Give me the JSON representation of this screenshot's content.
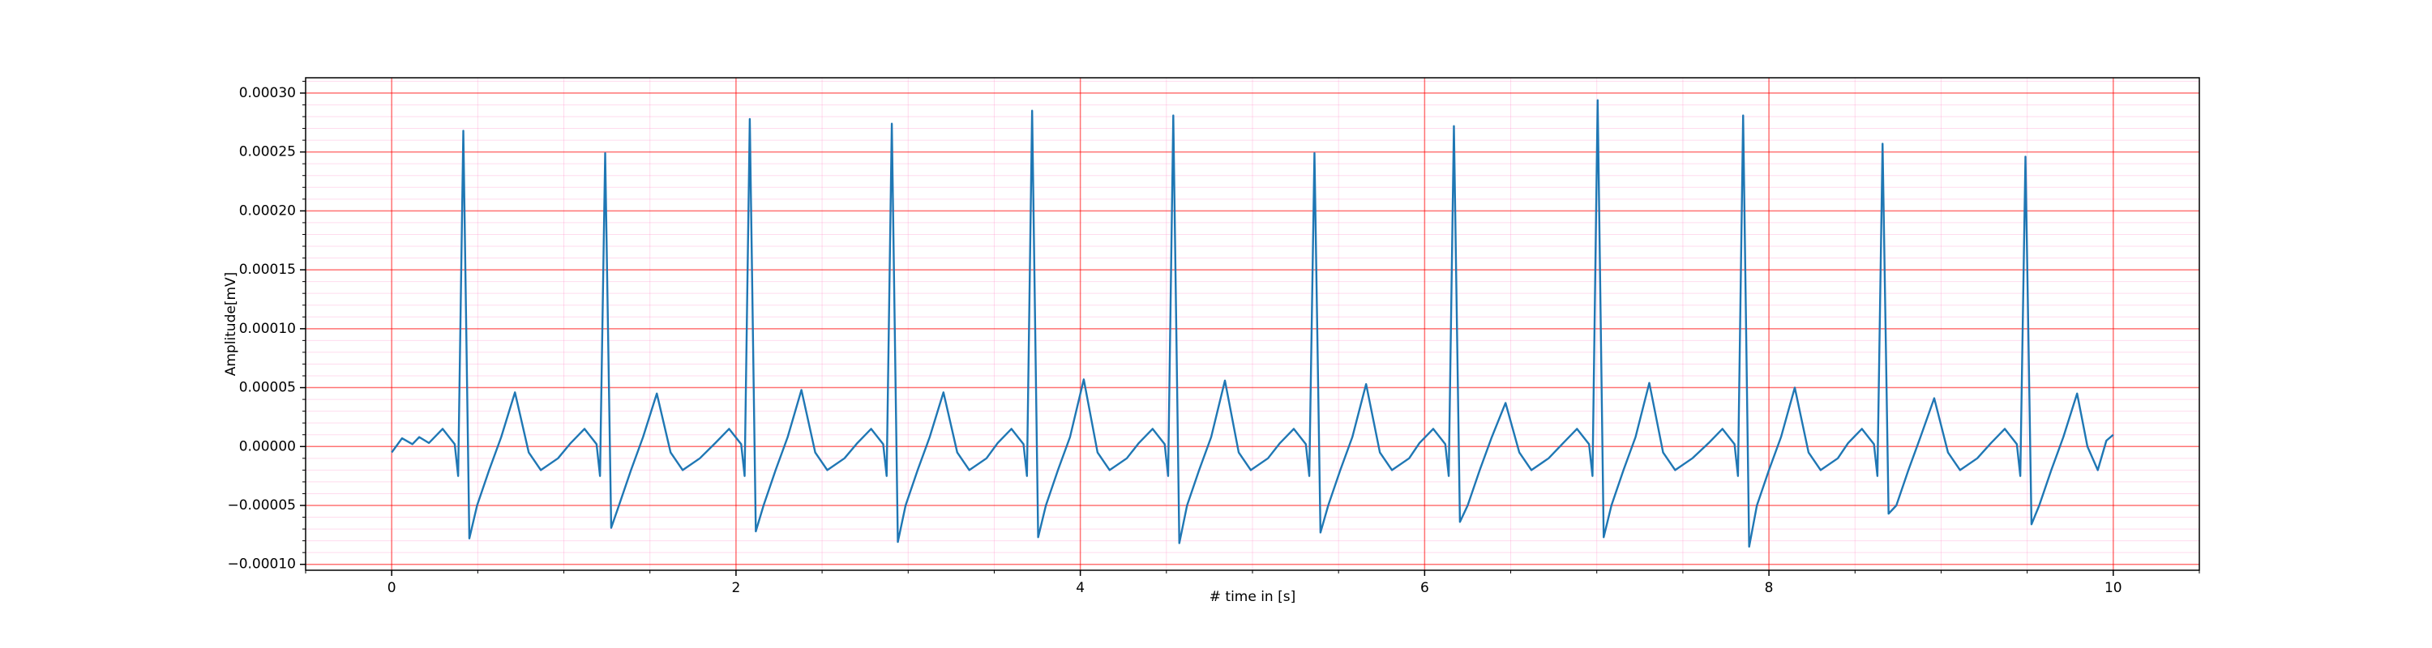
{
  "chart_data": {
    "type": "line",
    "xlabel": "# time in [s]",
    "ylabel": "Amplitude[mV]",
    "xlim": [
      -0.5,
      10.5
    ],
    "ylim": [
      -0.000105,
      0.000313
    ],
    "xticks": [
      0,
      2,
      4,
      6,
      8,
      10
    ],
    "yticks": [
      {
        "value": -0.0001,
        "label": "−0.00010"
      },
      {
        "value": -5e-05,
        "label": "−0.00005"
      },
      {
        "value": 0,
        "label": "0.00000"
      },
      {
        "value": 5e-05,
        "label": "0.00005"
      },
      {
        "value": 0.0001,
        "label": "0.00010"
      },
      {
        "value": 0.00015,
        "label": "0.00015"
      },
      {
        "value": 0.0002,
        "label": "0.00020"
      },
      {
        "value": 0.00025,
        "label": "0.00025"
      },
      {
        "value": 0.0003,
        "label": "0.00030"
      }
    ],
    "xminor_ticks": [
      -0.5,
      0.5,
      1,
      1.5,
      2.5,
      3,
      3.5,
      4.5,
      5,
      5.5,
      6.5,
      7,
      7.5,
      8.5,
      9,
      9.5,
      10.5
    ],
    "yminor_ticks": [
      -9e-05,
      -8e-05,
      -7e-05,
      -6e-05,
      -4e-05,
      -3e-05,
      -2e-05,
      -1e-05,
      1e-05,
      2e-05,
      3e-05,
      4e-05,
      6e-05,
      7e-05,
      8e-05,
      9e-05,
      0.00011,
      0.00012,
      0.00013,
      0.00014,
      0.00016,
      0.00017,
      0.00018,
      0.00019,
      0.00021,
      0.00022,
      0.00023,
      0.00024,
      0.00026,
      0.00027,
      0.00028,
      0.00029,
      0.00031
    ],
    "grid": true,
    "major_grid_color": "#ff0000",
    "minor_grid_color": "#ff99cc",
    "x": [
      0,
      0.06,
      0.12,
      0.16,
      0.216,
      0.296,
      0.366,
      0.386,
      0.416,
      0.451,
      0.496,
      0.566,
      0.636,
      0.716,
      0.796,
      0.866,
      0.966,
      1.04,
      1.12,
      1.19,
      1.21,
      1.24,
      1.275,
      1.32,
      1.39,
      1.46,
      1.54,
      1.62,
      1.69,
      1.79,
      1.88,
      1.96,
      2.03,
      2.05,
      2.08,
      2.115,
      2.16,
      2.23,
      2.3,
      2.38,
      2.46,
      2.53,
      2.63,
      2.705,
      2.785,
      2.855,
      2.875,
      2.905,
      2.94,
      2.985,
      3.055,
      3.125,
      3.205,
      3.285,
      3.355,
      3.455,
      3.52,
      3.6,
      3.67,
      3.69,
      3.72,
      3.755,
      3.8,
      3.87,
      3.94,
      4.02,
      4.1,
      4.17,
      4.27,
      4.34,
      4.42,
      4.49,
      4.51,
      4.54,
      4.575,
      4.62,
      4.69,
      4.76,
      4.84,
      4.92,
      4.99,
      5.09,
      5.16,
      5.24,
      5.31,
      5.33,
      5.36,
      5.395,
      5.44,
      5.51,
      5.58,
      5.66,
      5.74,
      5.81,
      5.91,
      5.97,
      6.05,
      6.12,
      6.14,
      6.17,
      6.205,
      6.25,
      6.32,
      6.39,
      6.47,
      6.55,
      6.62,
      6.72,
      6.805,
      6.885,
      6.955,
      6.975,
      7.005,
      7.04,
      7.085,
      7.155,
      7.225,
      7.305,
      7.385,
      7.455,
      7.555,
      7.65,
      7.73,
      7.8,
      7.82,
      7.85,
      7.885,
      7.93,
      8.0,
      8.07,
      8.15,
      8.23,
      8.3,
      8.4,
      8.46,
      8.54,
      8.61,
      8.63,
      8.66,
      8.695,
      8.74,
      8.81,
      8.88,
      8.96,
      9.04,
      9.11,
      9.21,
      9.29,
      9.37,
      9.44,
      9.46,
      9.49,
      9.525,
      9.57,
      9.64,
      9.71,
      9.79,
      9.85,
      9.91,
      9.96,
      10.0
    ],
    "series": [
      {
        "color": "#1f77b4",
        "values": [
          -5e-06,
          7e-06,
          2e-06,
          8e-06,
          3e-06,
          1.5e-05,
          2e-06,
          -2.5e-05,
          0.000268,
          -7.8e-05,
          -5e-05,
          -2e-05,
          8e-06,
          4.6e-05,
          -5e-06,
          -2e-05,
          -1e-05,
          3e-06,
          1.5e-05,
          2e-06,
          -2.5e-05,
          0.000249,
          -6.9e-05,
          -5e-05,
          -2e-05,
          8e-06,
          4.5e-05,
          -5e-06,
          -2e-05,
          -1e-05,
          3e-06,
          1.5e-05,
          2e-06,
          -2.5e-05,
          0.000278,
          -7.2e-05,
          -5e-05,
          -2e-05,
          8e-06,
          4.8e-05,
          -5e-06,
          -2e-05,
          -1e-05,
          3e-06,
          1.5e-05,
          2e-06,
          -2.5e-05,
          0.000274,
          -8.1e-05,
          -5e-05,
          -2e-05,
          8e-06,
          4.6e-05,
          -5e-06,
          -2e-05,
          -1e-05,
          3e-06,
          1.5e-05,
          2e-06,
          -2.5e-05,
          0.000285,
          -7.7e-05,
          -5e-05,
          -2e-05,
          8e-06,
          5.7e-05,
          -5e-06,
          -2e-05,
          -1e-05,
          3e-06,
          1.5e-05,
          2e-06,
          -2.5e-05,
          0.000281,
          -8.2e-05,
          -5e-05,
          -2e-05,
          8e-06,
          5.6e-05,
          -5e-06,
          -2e-05,
          -1e-05,
          3e-06,
          1.5e-05,
          2e-06,
          -2.5e-05,
          0.000249,
          -7.3e-05,
          -5e-05,
          -2e-05,
          8e-06,
          5.3e-05,
          -5e-06,
          -2e-05,
          -1e-05,
          3e-06,
          1.5e-05,
          2e-06,
          -2.5e-05,
          0.000272,
          -6.4e-05,
          -5e-05,
          -2e-05,
          8e-06,
          3.7e-05,
          -5e-06,
          -2e-05,
          -1e-05,
          3e-06,
          1.5e-05,
          2e-06,
          -2.5e-05,
          0.000294,
          -7.7e-05,
          -5e-05,
          -2e-05,
          8e-06,
          5.4e-05,
          -5e-06,
          -2e-05,
          -1e-05,
          3e-06,
          1.5e-05,
          2e-06,
          -2.5e-05,
          0.000281,
          -8.5e-05,
          -5e-05,
          -2e-05,
          8e-06,
          5e-05,
          -5e-06,
          -2e-05,
          -1e-05,
          3e-06,
          1.5e-05,
          2e-06,
          -2.5e-05,
          0.000257,
          -5.7e-05,
          -5e-05,
          -2e-05,
          8e-06,
          4.1e-05,
          -5e-06,
          -2e-05,
          -1e-05,
          3e-06,
          1.5e-05,
          2e-06,
          -2.5e-05,
          0.000246,
          -6.6e-05,
          -5e-05,
          -2e-05,
          8e-06,
          4.5e-05,
          0,
          -2e-05,
          5e-06,
          1e-05
        ]
      }
    ]
  }
}
